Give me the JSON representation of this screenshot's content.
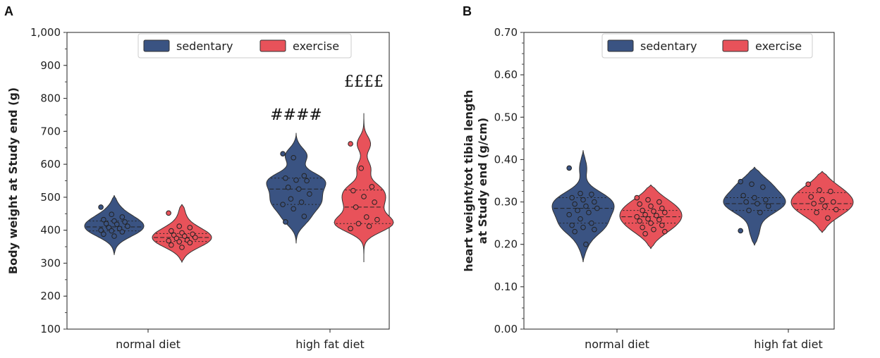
{
  "panels": [
    {
      "letter": "A",
      "chart_data": {
        "type": "violin",
        "ylabel": "Body weight at Study end (g)",
        "ylim": [
          100,
          1000
        ],
        "yticks": [
          100,
          200,
          300,
          400,
          500,
          600,
          700,
          800,
          900,
          "1,000"
        ],
        "categories": [
          "normal diet",
          "high fat diet"
        ],
        "legend": {
          "placement": "top-center",
          "entries": [
            "sedentary",
            "exercise"
          ]
        },
        "series": [
          {
            "name": "sedentary",
            "color": "#3a5382",
            "groups": [
              {
                "category": "normal diet",
                "min": 325,
                "max": 505,
                "median": 410,
                "q1": 398,
                "q3": 428,
                "points": [
                  470,
                  448,
                  440,
                  432,
                  428,
                  425,
                  420,
                  418,
                  412,
                  408,
                  405,
                  400,
                  398,
                  395,
                  388,
                  382
                ]
              },
              {
                "category": "high fat diet",
                "min": 360,
                "max": 695,
                "median": 525,
                "q1": 478,
                "q3": 558,
                "points": [
                  632,
                  620,
                  565,
                  558,
                  552,
                  550,
                  530,
                  525,
                  510,
                  495,
                  485,
                  478,
                  465,
                  442,
                  425
                ]
              }
            ]
          },
          {
            "name": "exercise",
            "color": "#e8525a",
            "groups": [
              {
                "category": "normal diet",
                "min": 303,
                "max": 478,
                "median": 378,
                "q1": 366,
                "q3": 390,
                "points": [
                  452,
                  412,
                  408,
                  398,
                  392,
                  388,
                  385,
                  382,
                  378,
                  375,
                  370,
                  368,
                  365,
                  362,
                  355,
                  348
                ]
              },
              {
                "category": "high fat diet",
                "min": 303,
                "max": 755,
                "median": 470,
                "q1": 420,
                "q3": 522,
                "points": [
                  662,
                  588,
                  532,
                  520,
                  502,
                  485,
                  470,
                  440,
                  432,
                  420,
                  412,
                  405
                ]
              }
            ]
          }
        ],
        "annotations": [
          {
            "text": "####",
            "category": "high fat diet",
            "series": "sedentary",
            "y": 735
          },
          {
            "text": "££££",
            "category": "high fat diet",
            "series": "exercise",
            "y": 835
          }
        ]
      }
    },
    {
      "letter": "B",
      "chart_data": {
        "type": "violin",
        "ylabel": "heart weight/tot tibia length at Study end (g/cm)",
        "ylabel_lines": [
          "heart weight/tot tibia length",
          "at Study end (g/cm)"
        ],
        "ylim": [
          0,
          0.7
        ],
        "yticks": [
          "0.00",
          "0.10",
          "0.20",
          "0.30",
          "0.40",
          "0.50",
          "0.60",
          "0.70"
        ],
        "categories": [
          "normal diet",
          "high fat diet"
        ],
        "legend": {
          "placement": "top-center",
          "entries": [
            "sedentary",
            "exercise"
          ]
        },
        "series": [
          {
            "name": "sedentary",
            "color": "#3a5382",
            "groups": [
              {
                "category": "normal diet",
                "min": 0.158,
                "max": 0.422,
                "median": 0.285,
                "q1": 0.25,
                "q3": 0.31,
                "points": [
                  0.38,
                  0.32,
                  0.318,
                  0.31,
                  0.305,
                  0.3,
                  0.295,
                  0.29,
                  0.285,
                  0.28,
                  0.275,
                  0.27,
                  0.26,
                  0.25,
                  0.245,
                  0.24,
                  0.235,
                  0.23,
                  0.2
                ]
              },
              {
                "category": "high fat diet",
                "min": 0.198,
                "max": 0.382,
                "median": 0.296,
                "q1": 0.28,
                "q3": 0.31,
                "points": [
                  0.348,
                  0.342,
                  0.335,
                  0.315,
                  0.31,
                  0.305,
                  0.3,
                  0.296,
                  0.29,
                  0.28,
                  0.275,
                  0.232
                ]
              }
            ]
          },
          {
            "name": "exercise",
            "color": "#e8525a",
            "groups": [
              {
                "category": "normal diet",
                "min": 0.19,
                "max": 0.34,
                "median": 0.265,
                "q1": 0.25,
                "q3": 0.28,
                "points": [
                  0.31,
                  0.305,
                  0.3,
                  0.295,
                  0.29,
                  0.285,
                  0.28,
                  0.278,
                  0.275,
                  0.27,
                  0.268,
                  0.265,
                  0.26,
                  0.258,
                  0.255,
                  0.25,
                  0.245,
                  0.24,
                  0.235,
                  0.23,
                  0.225
                ]
              },
              {
                "category": "high fat diet",
                "min": 0.228,
                "max": 0.372,
                "median": 0.296,
                "q1": 0.282,
                "q3": 0.322,
                "points": [
                  0.342,
                  0.328,
                  0.325,
                  0.312,
                  0.305,
                  0.3,
                  0.296,
                  0.29,
                  0.282,
                  0.275,
                  0.262
                ]
              }
            ]
          }
        ],
        "annotations": []
      }
    }
  ]
}
